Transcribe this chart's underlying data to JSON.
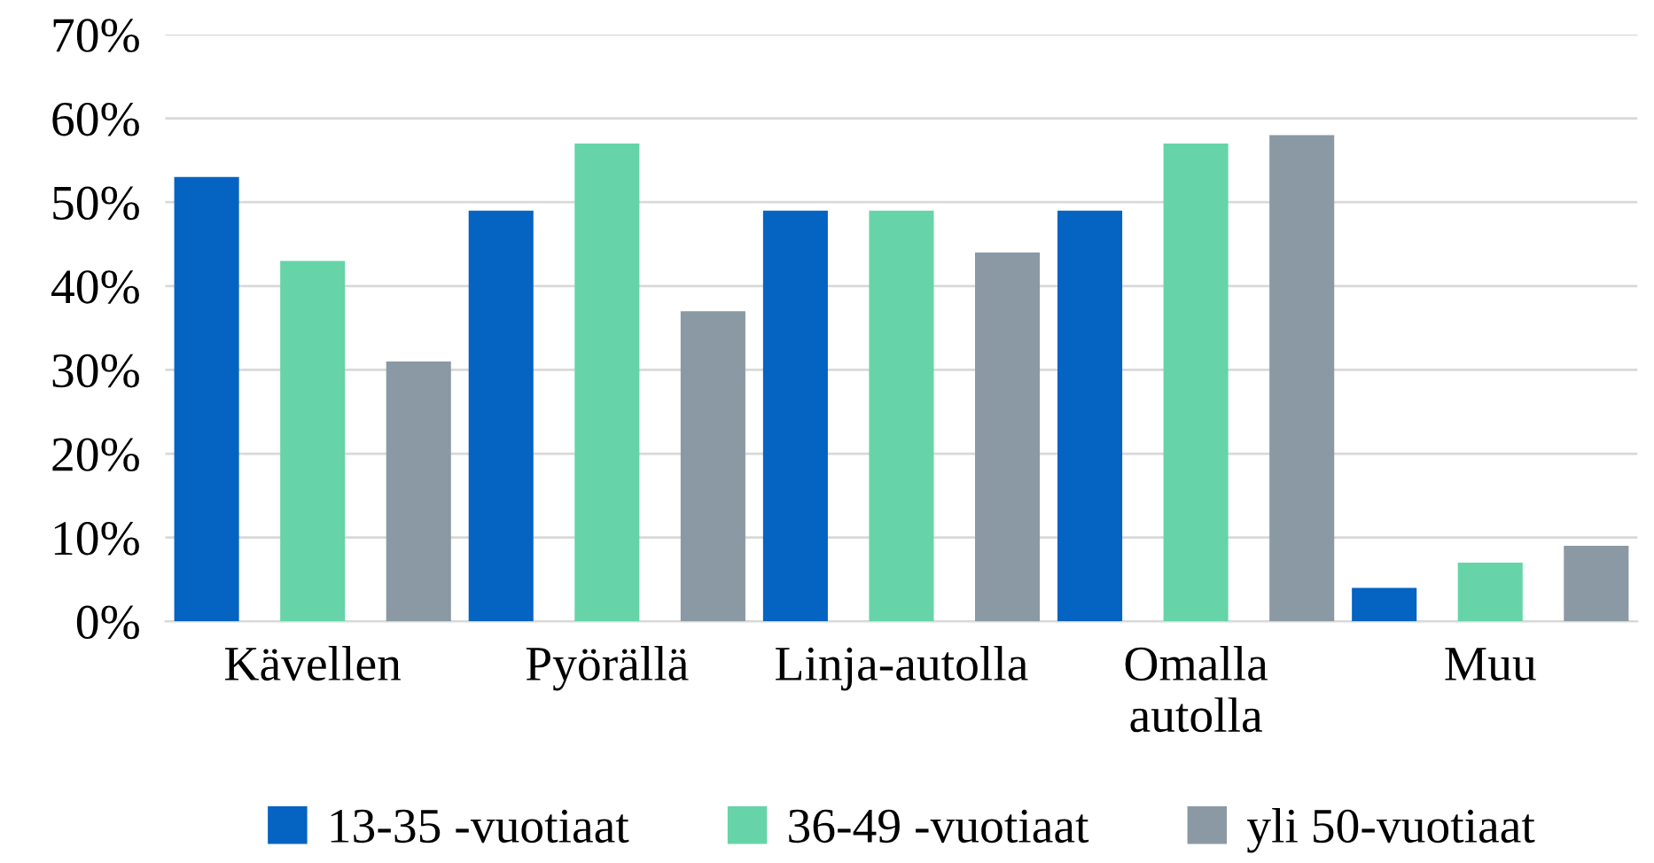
{
  "chart_data": {
    "type": "bar",
    "categories": [
      "Kävellen",
      "Pyörällä",
      "Linja-autolla",
      "Omalla\nautolla",
      "Muu"
    ],
    "series": [
      {
        "name": "13-35 -vuotiaat",
        "color": "#0563c1",
        "values": [
          53,
          49,
          49,
          49,
          4
        ]
      },
      {
        "name": "36-49 -vuotiaat",
        "color": "#66d4a8",
        "values": [
          43,
          57,
          49,
          57,
          7
        ]
      },
      {
        "name": "yli 50-vuotiaat",
        "color": "#8a99a3",
        "values": [
          31,
          37,
          44,
          58,
          9
        ]
      }
    ],
    "ylim": [
      0,
      70
    ],
    "yticks": [
      {
        "value": 0,
        "label": "0%"
      },
      {
        "value": 10,
        "label": "10%"
      },
      {
        "value": 20,
        "label": "20%"
      },
      {
        "value": 30,
        "label": "30%"
      },
      {
        "value": 40,
        "label": "40%"
      },
      {
        "value": 50,
        "label": "50%"
      },
      {
        "value": 60,
        "label": "60%"
      },
      {
        "value": 70,
        "label": "70%"
      }
    ],
    "grid": "y",
    "legend": "bottom"
  }
}
